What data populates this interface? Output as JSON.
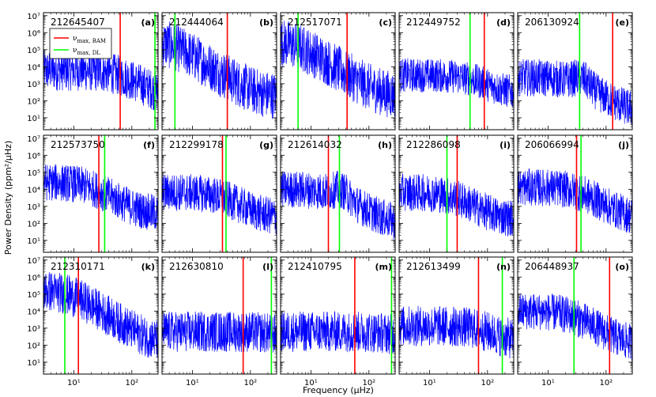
{
  "figure": {
    "xlabel": "Frequency (μHz)",
    "ylabel": "Power Density (ppm²/μHz)"
  },
  "legend": {
    "entries": [
      {
        "label": "ν",
        "sub": "max, BAM",
        "color": "#ff0000"
      },
      {
        "label": "ν",
        "sub": "max, DL",
        "color": "#00ff00"
      }
    ]
  },
  "chart_data": {
    "type": "line",
    "xscale": "log",
    "yscale": "log",
    "xlim": [
      3,
      283
    ],
    "ylim": [
      2,
      15000000
    ],
    "x_ticks": [
      {
        "value": 10,
        "label": "10¹"
      },
      {
        "value": 100,
        "label": "10²"
      }
    ],
    "y_ticks": [
      {
        "value": 10,
        "label": "10¹"
      },
      {
        "value": 100,
        "label": "10²"
      },
      {
        "value": 1000,
        "label": "10³"
      },
      {
        "value": 10000,
        "label": "10⁴"
      },
      {
        "value": 100000,
        "label": "10⁵"
      },
      {
        "value": 1000000,
        "label": "10⁶"
      },
      {
        "value": 10000000,
        "label": "10⁷"
      }
    ],
    "series_color": "#0000ff",
    "bam_color": "#ff0000",
    "dl_color": "#00ff00",
    "panels": [
      {
        "letter": "(a)",
        "star": "212645407",
        "bam": 63,
        "dl": 250,
        "low_power": 20000,
        "knee": 60,
        "noise_level": 500,
        "peak": 0,
        "noise_amp": 1.2
      },
      {
        "letter": "(b)",
        "star": "212444064",
        "bam": 40,
        "dl": 5,
        "low_power": 1500000,
        "knee": 4,
        "noise_level": 700,
        "peak": 0,
        "noise_amp": 1.4
      },
      {
        "letter": "(c)",
        "star": "212517071",
        "bam": 42,
        "dl": 6,
        "low_power": 1500000,
        "knee": 5,
        "noise_level": 700,
        "peak": 0,
        "noise_amp": 1.4
      },
      {
        "letter": "(d)",
        "star": "212449752",
        "bam": 88,
        "dl": 50,
        "low_power": 8000,
        "knee": 55,
        "noise_level": 700,
        "peak": 0,
        "noise_amp": 1.0
      },
      {
        "letter": "(e)",
        "star": "206130924",
        "bam": 130,
        "dl": 35,
        "low_power": 7000,
        "knee": 28,
        "noise_level": 60,
        "peak": 1,
        "noise_amp": 1.1
      },
      {
        "letter": "(f)",
        "star": "212573750",
        "bam": 27,
        "dl": 34,
        "low_power": 80000,
        "knee": 18,
        "noise_level": 1000,
        "peak": 0,
        "noise_amp": 1.1
      },
      {
        "letter": "(g)",
        "star": "212299178",
        "bam": 33,
        "dl": 38,
        "low_power": 20000,
        "knee": 30,
        "noise_level": 600,
        "peak": 0,
        "noise_amp": 1.1
      },
      {
        "letter": "(h)",
        "star": "212614032",
        "bam": 20,
        "dl": 31,
        "low_power": 30000,
        "knee": 25,
        "noise_level": 250,
        "peak": 1,
        "noise_amp": 1.1
      },
      {
        "letter": "(i)",
        "star": "212286098",
        "bam": 30,
        "dl": 20,
        "low_power": 20000,
        "knee": 25,
        "noise_level": 500,
        "peak": 0,
        "noise_amp": 1.1
      },
      {
        "letter": "(j)",
        "star": "206066994",
        "bam": 31,
        "dl": 37,
        "low_power": 40000,
        "knee": 32,
        "noise_level": 500,
        "peak": 0,
        "noise_amp": 1.1
      },
      {
        "letter": "(k)",
        "star": "212310171",
        "bam": 12,
        "dl": 7,
        "low_power": 600000,
        "knee": 8,
        "noise_level": 400,
        "peak": 0,
        "noise_amp": 1.2
      },
      {
        "letter": "(l)",
        "star": "212630810",
        "bam": 75,
        "dl": 230,
        "low_power": 1500,
        "knee": 300,
        "noise_level": 600,
        "peak": 0,
        "noise_amp": 1.2
      },
      {
        "letter": "(m)",
        "star": "212410795",
        "bam": 57,
        "dl": 245,
        "low_power": 1500,
        "knee": 300,
        "noise_level": 600,
        "peak": 0,
        "noise_amp": 1.2
      },
      {
        "letter": "(n)",
        "star": "212613499",
        "bam": 70,
        "dl": 180,
        "low_power": 4000,
        "knee": 80,
        "noise_level": 500,
        "peak": 0,
        "noise_amp": 1.2
      },
      {
        "letter": "(o)",
        "star": "206448937",
        "bam": 115,
        "dl": 28,
        "low_power": 30000,
        "knee": 25,
        "noise_level": 300,
        "peak": 0,
        "noise_amp": 1.1
      }
    ]
  }
}
